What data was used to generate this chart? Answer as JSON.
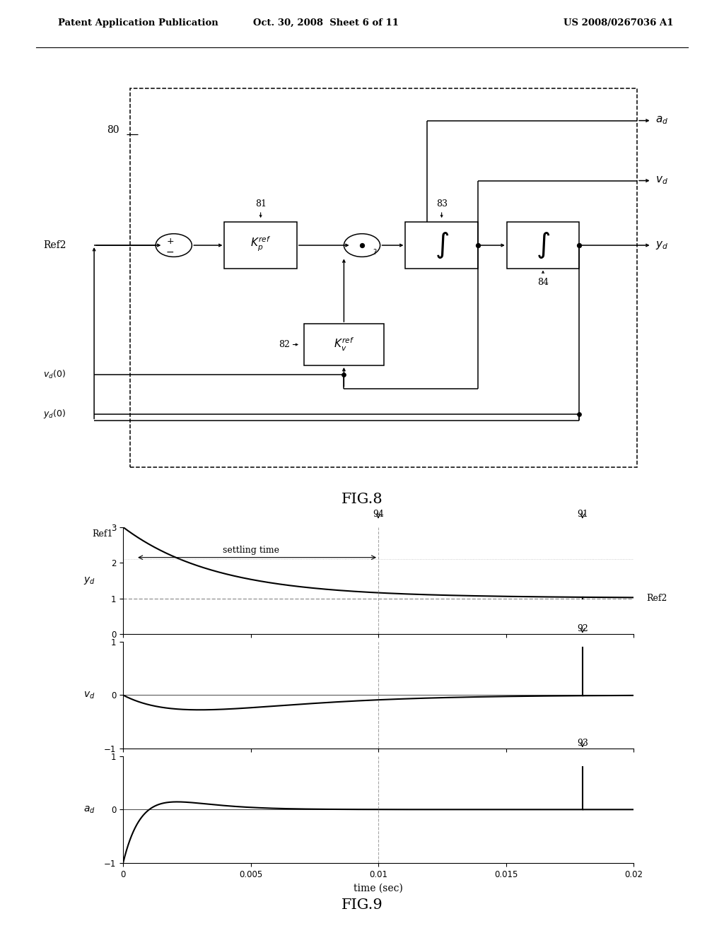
{
  "header_left": "Patent Application Publication",
  "header_center": "Oct. 30, 2008  Sheet 6 of 11",
  "header_right": "US 2008/0267036 A1",
  "fig8_label": "FIG.8",
  "fig9_label": "FIG.9",
  "label_80": "80",
  "label_81": "81",
  "label_82": "82",
  "label_83": "83",
  "label_84": "84",
  "label_91": "91",
  "label_92": "92",
  "label_93": "93",
  "label_94": "94",
  "ref2_label": "Ref2",
  "ref1_label": "Ref1",
  "vd0_label": "v_d(0)",
  "yd0_label": "y_d(0)",
  "ad_label": "a_d",
  "vd_label": "v_d",
  "yd_label": "y_d",
  "ref2_right": "Ref2",
  "settling_time_label": "settling time",
  "time_xlabel": "time (sec)",
  "background_color": "#ffffff",
  "line_color": "#000000"
}
